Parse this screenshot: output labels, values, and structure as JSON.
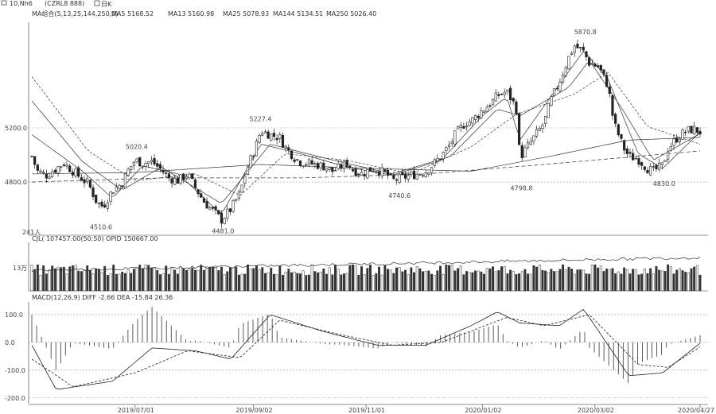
{
  "header": {
    "contract_label": "10,Nh6",
    "contract_code": "(CZRL8 888)",
    "period_label": "日K"
  },
  "indicators": {
    "ma": "MA组合(5,13,25,144,250,0)",
    "ma5": "MA5 5168.52",
    "ma13": "MA13 5160.98",
    "ma25": "MA25 5078.93",
    "ma144": "MA144 5134.51",
    "ma250": "MA250 5026.40",
    "vol": "CJL(  107457.00(50:50)  OPID 150667.00",
    "macd": "MACD(12,26,9)  DIFF -2.66  DEA -15.84  26.36",
    "vol_axis_label": "13万"
  },
  "colors": {
    "candle": "#222222",
    "grid": "#9a9a9a",
    "ma": "#333333",
    "bg": "#ffffff"
  },
  "annotations": [
    {
      "text": "5020.4",
      "date": "2019/07/01",
      "price": 5020.4
    },
    {
      "text": "5227.4",
      "date": "2019/09/05",
      "price": 5227.4
    },
    {
      "text": "5870.8",
      "date": "2020/02/25",
      "price": 5870.8
    },
    {
      "text": "4510.6",
      "date": "2019/06/12",
      "price": 4510.6
    },
    {
      "text": "4481.0",
      "date": "2019/08/16",
      "price": 4481.0
    },
    {
      "text": "4740.6",
      "date": "2019/11/18",
      "price": 4740.6
    },
    {
      "text": "4798.8",
      "date": "2020/01/22",
      "price": 4798.8
    },
    {
      "text": "4830.0",
      "date": "2020/04/07",
      "price": 4830.0
    },
    {
      "text": "241人",
      "date": "2019/05/07",
      "price": 4470
    }
  ],
  "chart_data": {
    "type": "line",
    "x_axis": [
      "2019/07/01",
      "2019/09/02",
      "2019/11/01",
      "2020/01/02",
      "2020/03/02",
      "2020/04/27"
    ],
    "price_axis": {
      "ylim": [
        4430,
        5970
      ],
      "ticks": [
        "5200.0",
        "4800.0"
      ],
      "tick_values": [
        5200,
        4800
      ]
    },
    "macd_axis": {
      "ylim": [
        -215,
        140
      ],
      "ticks": [
        "100.0",
        "0.0",
        "-100.0",
        "-200.0"
      ],
      "tick_values": [
        100,
        0,
        -100,
        -200
      ]
    },
    "vol_axis": {
      "ylim": [
        0,
        180000
      ],
      "ticks": [
        "13万"
      ],
      "tick_values": [
        130000
      ]
    },
    "close_series": [
      [
        "2019/05/07",
        4990
      ],
      [
        "2019/05/10",
        4880
      ],
      [
        "2019/05/15",
        4850
      ],
      [
        "2019/05/20",
        4900
      ],
      [
        "2019/05/24",
        4940
      ],
      [
        "2019/05/29",
        4880
      ],
      [
        "2019/06/03",
        4820
      ],
      [
        "2019/06/06",
        4790
      ],
      [
        "2019/06/11",
        4640
      ],
      [
        "2019/06/14",
        4620
      ],
      [
        "2019/06/19",
        4740
      ],
      [
        "2019/06/24",
        4790
      ],
      [
        "2019/06/27",
        4880
      ],
      [
        "2019/07/01",
        4960
      ],
      [
        "2019/07/05",
        4940
      ],
      [
        "2019/07/10",
        4950
      ],
      [
        "2019/07/15",
        4890
      ],
      [
        "2019/07/19",
        4830
      ],
      [
        "2019/07/24",
        4810
      ],
      [
        "2019/07/29",
        4860
      ],
      [
        "2019/08/02",
        4760
      ],
      [
        "2019/08/07",
        4650
      ],
      [
        "2019/08/12",
        4580
      ],
      [
        "2019/08/16",
        4520
      ],
      [
        "2019/08/21",
        4600
      ],
      [
        "2019/08/26",
        4720
      ],
      [
        "2019/08/29",
        4880
      ],
      [
        "2019/09/03",
        5050
      ],
      [
        "2019/09/06",
        5180
      ],
      [
        "2019/09/11",
        5150
      ],
      [
        "2019/09/16",
        5130
      ],
      [
        "2019/09/19",
        5060
      ],
      [
        "2019/09/24",
        4980
      ],
      [
        "2019/09/27",
        4950
      ],
      [
        "2019/10/09",
        4920
      ],
      [
        "2019/10/14",
        4880
      ],
      [
        "2019/10/17",
        4900
      ],
      [
        "2019/10/22",
        4940
      ],
      [
        "2019/10/25",
        4890
      ],
      [
        "2019/10/30",
        4860
      ],
      [
        "2019/11/04",
        4900
      ],
      [
        "2019/11/07",
        4890
      ],
      [
        "2019/11/12",
        4860
      ],
      [
        "2019/11/15",
        4810
      ],
      [
        "2019/11/20",
        4830
      ],
      [
        "2019/11/25",
        4850
      ],
      [
        "2019/11/28",
        4860
      ],
      [
        "2019/12/03",
        4880
      ],
      [
        "2019/12/06",
        4920
      ],
      [
        "2019/12/11",
        4990
      ],
      [
        "2019/12/16",
        5080
      ],
      [
        "2019/12/19",
        5160
      ],
      [
        "2019/12/24",
        5240
      ],
      [
        "2019/12/27",
        5250
      ],
      [
        "2020/01/02",
        5330
      ],
      [
        "2020/01/07",
        5390
      ],
      [
        "2020/01/10",
        5440
      ],
      [
        "2020/01/15",
        5470
      ],
      [
        "2020/01/20",
        5350
      ],
      [
        "2020/01/22",
        4980
      ],
      [
        "2020/02/04",
        5240
      ],
      [
        "2020/02/07",
        5390
      ],
      [
        "2020/02/12",
        5540
      ],
      [
        "2020/02/17",
        5720
      ],
      [
        "2020/02/20",
        5810
      ],
      [
        "2020/02/25",
        5760
      ],
      [
        "2020/02/28",
        5680
      ],
      [
        "2020/03/04",
        5650
      ],
      [
        "2020/03/09",
        5510
      ],
      [
        "2020/03/12",
        5240
      ],
      [
        "2020/03/17",
        5060
      ],
      [
        "2020/03/20",
        4990
      ],
      [
        "2020/03/25",
        4970
      ],
      [
        "2020/03/30",
        4900
      ],
      [
        "2020/04/02",
        4880
      ],
      [
        "2020/04/07",
        4920
      ],
      [
        "2020/04/10",
        5050
      ],
      [
        "2020/04/15",
        5130
      ],
      [
        "2020/04/20",
        5180
      ],
      [
        "2020/04/24",
        5190
      ],
      [
        "2020/04/27",
        5170
      ]
    ],
    "series": [
      {
        "name": "MA5",
        "values": [
          [
            "2019/05/07",
            5150
          ],
          [
            "2019/06/03",
            4880
          ],
          [
            "2019/06/19",
            4680
          ],
          [
            "2019/07/05",
            4920
          ],
          [
            "2019/07/24",
            4860
          ],
          [
            "2019/08/16",
            4560
          ],
          [
            "2019/09/06",
            5080
          ],
          [
            "2019/09/27",
            5010
          ],
          [
            "2019/10/22",
            4910
          ],
          [
            "2019/11/15",
            4850
          ],
          [
            "2019/12/11",
            4960
          ],
          [
            "2020/01/02",
            5290
          ],
          [
            "2020/01/15",
            5430
          ],
          [
            "2020/01/22",
            5110
          ],
          [
            "2020/02/12",
            5520
          ],
          [
            "2020/02/25",
            5770
          ],
          [
            "2020/03/09",
            5560
          ],
          [
            "2020/03/25",
            5010
          ],
          [
            "2020/04/07",
            4900
          ],
          [
            "2020/04/27",
            5170
          ]
        ]
      },
      {
        "name": "MA13",
        "values": [
          [
            "2019/05/07",
            5400
          ],
          [
            "2019/06/03",
            4950
          ],
          [
            "2019/06/24",
            4740
          ],
          [
            "2019/07/15",
            4910
          ],
          [
            "2019/08/16",
            4640
          ],
          [
            "2019/09/11",
            5080
          ],
          [
            "2019/10/09",
            4980
          ],
          [
            "2019/11/15",
            4860
          ],
          [
            "2019/12/16",
            4990
          ],
          [
            "2020/01/10",
            5340
          ],
          [
            "2020/01/22",
            5290
          ],
          [
            "2020/02/17",
            5500
          ],
          [
            "2020/02/28",
            5700
          ],
          [
            "2020/03/17",
            5330
          ],
          [
            "2020/04/02",
            4960
          ],
          [
            "2020/04/27",
            5160
          ]
        ]
      },
      {
        "name": "MA25",
        "values": [
          [
            "2019/05/07",
            5580
          ],
          [
            "2019/06/06",
            5030
          ],
          [
            "2019/07/01",
            4810
          ],
          [
            "2019/08/02",
            4860
          ],
          [
            "2019/08/26",
            4700
          ],
          [
            "2019/09/19",
            5010
          ],
          [
            "2019/10/22",
            4960
          ],
          [
            "2019/11/25",
            4860
          ],
          [
            "2019/12/27",
            5060
          ],
          [
            "2020/01/20",
            5300
          ],
          [
            "2020/02/20",
            5450
          ],
          [
            "2020/03/09",
            5610
          ],
          [
            "2020/03/30",
            5210
          ],
          [
            "2020/04/27",
            5080
          ]
        ]
      },
      {
        "name": "MA144",
        "values": [
          [
            "2019/05/07",
            4860
          ],
          [
            "2019/07/01",
            4870
          ],
          [
            "2019/09/06",
            4930
          ],
          [
            "2019/11/04",
            4900
          ],
          [
            "2019/12/27",
            4880
          ],
          [
            "2020/02/07",
            4990
          ],
          [
            "2020/03/20",
            5110
          ],
          [
            "2020/04/27",
            5130
          ]
        ]
      },
      {
        "name": "MA250",
        "values": [
          [
            "2019/05/07",
            4800
          ],
          [
            "2019/07/15",
            4830
          ],
          [
            "2019/09/27",
            4830
          ],
          [
            "2019/12/03",
            4860
          ],
          [
            "2020/02/04",
            4930
          ],
          [
            "2020/03/25",
            4990
          ],
          [
            "2020/04/27",
            5030
          ]
        ]
      }
    ],
    "macd_diff": [
      [
        "2019/05/07",
        -10
      ],
      [
        "2019/05/20",
        -170
      ],
      [
        "2019/06/19",
        -140
      ],
      [
        "2019/07/10",
        -20
      ],
      [
        "2019/08/02",
        -30
      ],
      [
        "2019/08/21",
        -60
      ],
      [
        "2019/09/11",
        100
      ],
      [
        "2019/10/09",
        40
      ],
      [
        "2019/11/07",
        -10
      ],
      [
        "2019/12/03",
        -10
      ],
      [
        "2019/12/27",
        60
      ],
      [
        "2020/01/10",
        110
      ],
      [
        "2020/01/22",
        70
      ],
      [
        "2020/02/12",
        60
      ],
      [
        "2020/02/25",
        120
      ],
      [
        "2020/03/20",
        -120
      ],
      [
        "2020/04/07",
        -110
      ],
      [
        "2020/04/27",
        -3
      ]
    ],
    "macd_dea": [
      [
        "2019/05/07",
        -60
      ],
      [
        "2019/05/29",
        -160
      ],
      [
        "2019/07/01",
        -110
      ],
      [
        "2019/07/29",
        -30
      ],
      [
        "2019/08/26",
        -55
      ],
      [
        "2019/09/16",
        80
      ],
      [
        "2019/10/17",
        30
      ],
      [
        "2019/11/15",
        -10
      ],
      [
        "2019/12/11",
        0
      ],
      [
        "2020/01/15",
        90
      ],
      [
        "2020/02/04",
        60
      ],
      [
        "2020/02/28",
        100
      ],
      [
        "2020/03/25",
        -80
      ],
      [
        "2020/04/10",
        -90
      ],
      [
        "2020/04/27",
        -16
      ]
    ],
    "volume_level": 90000,
    "open_interest_level": 140000
  }
}
